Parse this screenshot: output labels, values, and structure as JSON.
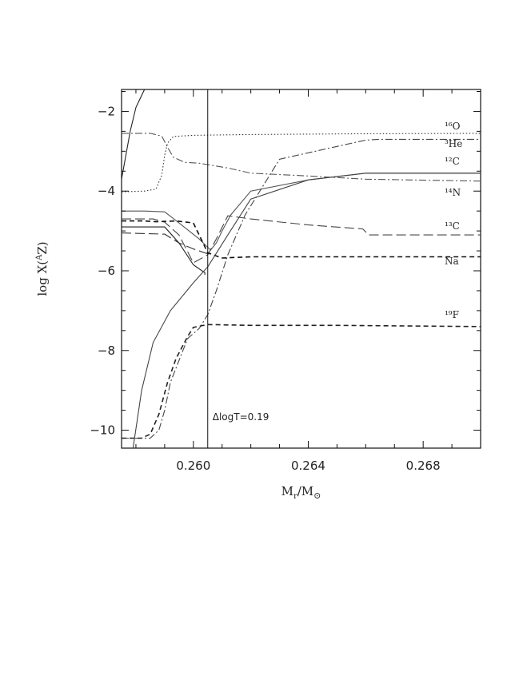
{
  "chart_data": {
    "type": "line",
    "title": "",
    "xlabel": {
      "main": "M",
      "sub1": "r",
      "slash": "/M",
      "sub2": "⊙"
    },
    "ylabel": {
      "pre": "log X(",
      "sup": "A",
      "post": "Z)"
    },
    "xlim": [
      0.2575,
      0.27
    ],
    "ylim": [
      -10.45,
      -1.45
    ],
    "xticks": [
      0.26,
      0.264,
      0.268
    ],
    "xtick_labels": [
      "0.260",
      "0.264",
      "0.268"
    ],
    "yticks": [
      -2,
      -4,
      -6,
      -8,
      -10
    ],
    "ytick_labels": [
      "−2",
      "−4",
      "−6",
      "−8",
      "−10"
    ],
    "grid": false,
    "vline": {
      "x": 0.2605,
      "label": "ΔlogT=0.19"
    },
    "series": [
      {
        "name": "¹⁶O",
        "style": "dotted",
        "color": "#333333",
        "x": [
          0.2575,
          0.2583,
          0.2587,
          0.2589,
          0.259,
          0.2591,
          0.2593,
          0.26,
          0.262,
          0.266,
          0.27
        ],
        "y": [
          -4.02,
          -4.0,
          -3.95,
          -3.6,
          -3.1,
          -2.8,
          -2.63,
          -2.6,
          -2.58,
          -2.56,
          -2.55
        ]
      },
      {
        "name": "³He",
        "style": "dashdot",
        "color": "#555555",
        "x": [
          0.2575,
          0.2585,
          0.2589,
          0.2591,
          0.2593,
          0.2597,
          0.2602,
          0.2612,
          0.262,
          0.264,
          0.266,
          0.27
        ],
        "y": [
          -2.55,
          -2.55,
          -2.62,
          -2.9,
          -3.15,
          -3.28,
          -3.3,
          -3.42,
          -3.55,
          -3.62,
          -3.7,
          -3.75
        ]
      },
      {
        "name": "¹²C",
        "style": "solid",
        "color": "#555555",
        "x": [
          0.2575,
          0.2583,
          0.259,
          0.2595,
          0.2602,
          0.2606,
          0.2608,
          0.261,
          0.2613,
          0.262,
          0.264,
          0.266,
          0.27
        ],
        "y": [
          -4.5,
          -4.5,
          -4.52,
          -4.8,
          -5.2,
          -5.48,
          -5.3,
          -5.0,
          -4.6,
          -4.0,
          -3.72,
          -3.55,
          -3.55
        ]
      },
      {
        "name": "¹⁴N",
        "style": "dashdot",
        "color": "#444444",
        "x": [
          0.2575,
          0.2585,
          0.2588,
          0.259,
          0.2592,
          0.2598,
          0.2602,
          0.2605,
          0.2608,
          0.2612,
          0.2618,
          0.263,
          0.265,
          0.266,
          0.2665,
          0.27
        ],
        "y": [
          -10.2,
          -10.2,
          -10.0,
          -9.5,
          -8.8,
          -7.7,
          -7.45,
          -7.1,
          -6.5,
          -5.6,
          -4.6,
          -3.2,
          -2.88,
          -2.72,
          -2.7,
          -2.7
        ]
      },
      {
        "name": "¹³C",
        "style": "longdash",
        "color": "#444444",
        "x": [
          0.2575,
          0.2586,
          0.259,
          0.2595,
          0.26,
          0.2605,
          0.2608,
          0.2612,
          0.262,
          0.264,
          0.2659,
          0.2661,
          0.27
        ],
        "y": [
          -4.7,
          -4.7,
          -4.78,
          -5.1,
          -5.8,
          -5.6,
          -5.2,
          -4.62,
          -4.7,
          -4.85,
          -4.95,
          -5.1,
          -5.1
        ]
      },
      {
        "name": "Na",
        "style": "dashed",
        "color": "#111111",
        "x": [
          0.2575,
          0.2583,
          0.2587,
          0.2594,
          0.26,
          0.2605,
          0.261,
          0.262,
          0.264,
          0.266,
          0.27
        ],
        "y": [
          -4.75,
          -4.75,
          -4.77,
          -4.75,
          -4.8,
          -5.55,
          -5.68,
          -5.65,
          -5.65,
          -5.65,
          -5.65
        ]
      },
      {
        "name": "¹⁹F",
        "style": "dashed",
        "color": "#222222",
        "x": [
          0.2575,
          0.2582,
          0.2585,
          0.2588,
          0.2591,
          0.2594,
          0.2598,
          0.26,
          0.2605,
          0.262,
          0.265,
          0.27
        ],
        "y": [
          -10.2,
          -10.2,
          -10.1,
          -9.6,
          -8.8,
          -8.2,
          -7.65,
          -7.42,
          -7.35,
          -7.37,
          -7.37,
          -7.4
        ]
      }
    ],
    "extra_curves": [
      {
        "style": "solid",
        "color": "#222222",
        "x": [
          0.2575,
          0.2578,
          0.258,
          0.2582,
          0.2583
        ],
        "y": [
          -3.7,
          -2.5,
          -1.9,
          -1.6,
          -1.45
        ]
      },
      {
        "style": "solid",
        "color": "#222222",
        "x": [
          0.2575,
          0.259,
          0.2595,
          0.26,
          0.2604,
          0.2604
        ],
        "y": [
          -4.9,
          -4.9,
          -5.3,
          -5.85,
          -6.05,
          -6.1
        ]
      },
      {
        "style": "longdash",
        "color": "#333333",
        "x": [
          0.2575,
          0.259,
          0.2595,
          0.26,
          0.2606
        ],
        "y": [
          -5.05,
          -5.08,
          -5.3,
          -5.45,
          -5.6
        ]
      },
      {
        "style": "solid",
        "color": "#444444",
        "x": [
          0.2579,
          0.2582,
          0.2586,
          0.2592,
          0.26,
          0.2605,
          0.2612,
          0.262,
          0.264,
          0.266,
          0.27
        ],
        "y": [
          -10.45,
          -9.0,
          -7.8,
          -7.0,
          -6.3,
          -5.9,
          -5.1,
          -4.2,
          -3.72,
          -3.55,
          -3.55
        ]
      }
    ]
  }
}
